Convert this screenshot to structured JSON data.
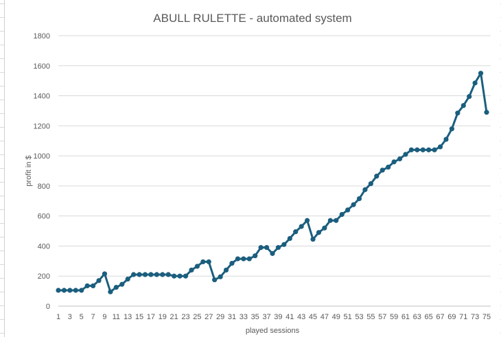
{
  "chart_data": {
    "type": "line",
    "title": "ABULL RULETTE - automated system",
    "xlabel": "played sessions",
    "ylabel": "profit in $",
    "ylim": [
      0,
      1800
    ],
    "yticks": [
      0,
      200,
      400,
      600,
      800,
      1000,
      1200,
      1400,
      1600,
      1800
    ],
    "xtick_labels": [
      "1",
      "3",
      "5",
      "7",
      "9",
      "11",
      "13",
      "15",
      "17",
      "19",
      "21",
      "23",
      "25",
      "27",
      "29",
      "31",
      "33",
      "35",
      "37",
      "39",
      "41",
      "43",
      "45",
      "47",
      "49",
      "51",
      "53",
      "55",
      "57",
      "59",
      "61",
      "63",
      "65",
      "67",
      "69",
      "71",
      "73",
      "75"
    ],
    "grid": "horizontal",
    "legend": "none",
    "color": "#1b5e7e",
    "x": [
      1,
      2,
      3,
      4,
      5,
      6,
      7,
      8,
      9,
      10,
      11,
      12,
      13,
      14,
      15,
      16,
      17,
      18,
      19,
      20,
      21,
      22,
      23,
      24,
      25,
      26,
      27,
      28,
      29,
      30,
      31,
      32,
      33,
      34,
      35,
      36,
      37,
      38,
      39,
      40,
      41,
      42,
      43,
      44,
      45,
      46,
      47,
      48,
      49,
      50,
      51,
      52,
      53,
      54,
      55,
      56,
      57,
      58,
      59,
      60,
      61,
      62,
      63,
      64,
      65,
      66,
      67,
      68,
      69,
      70,
      71,
      72,
      73,
      74,
      75
    ],
    "values": [
      105,
      105,
      105,
      105,
      105,
      135,
      135,
      170,
      215,
      95,
      125,
      145,
      180,
      210,
      210,
      210,
      210,
      210,
      210,
      210,
      200,
      200,
      200,
      240,
      265,
      295,
      295,
      175,
      195,
      240,
      285,
      315,
      315,
      315,
      335,
      390,
      390,
      350,
      390,
      410,
      450,
      495,
      530,
      570,
      445,
      490,
      520,
      570,
      570,
      610,
      640,
      675,
      715,
      775,
      815,
      865,
      905,
      925,
      960,
      980,
      1010,
      1040,
      1040,
      1040,
      1040,
      1040,
      1060,
      1110,
      1180,
      1285,
      1335,
      1395,
      1485,
      1550,
      1290
    ]
  }
}
